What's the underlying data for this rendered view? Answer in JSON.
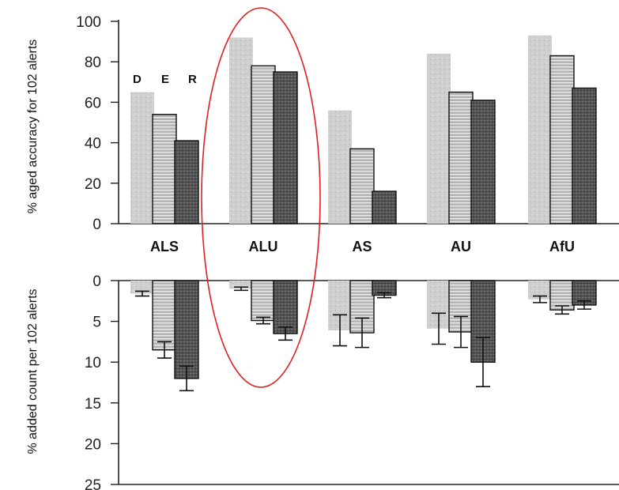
{
  "chart_data": [
    {
      "type": "bar",
      "categories": [
        "ALS",
        "ALU",
        "AS",
        "AU",
        "AfU"
      ],
      "series": [
        {
          "name": "D",
          "values": [
            65,
            92,
            56,
            84,
            93
          ]
        },
        {
          "name": "E",
          "values": [
            54,
            78,
            37,
            65,
            83
          ]
        },
        {
          "name": "R",
          "values": [
            41,
            75,
            16,
            61,
            67
          ]
        }
      ],
      "ylabel": "% aged accuracy for 102 alerts",
      "ylim": [
        0,
        100
      ],
      "yticks": [
        "100",
        "80",
        "60",
        "40",
        "20",
        "0"
      ],
      "legend": [
        "D",
        "E",
        "R"
      ],
      "legend_position": "top-left",
      "grid": false
    },
    {
      "type": "bar",
      "categories": [
        "ALS",
        "ALU",
        "AS",
        "AU",
        "AfU"
      ],
      "series": [
        {
          "name": "D",
          "values": [
            1.6,
            1.0,
            6.1,
            5.9,
            2.3
          ],
          "err": [
            0.3,
            0.2,
            1.9,
            1.9,
            0.4
          ]
        },
        {
          "name": "E",
          "values": [
            8.5,
            4.9,
            6.4,
            6.3,
            3.6
          ],
          "err": [
            1.0,
            0.4,
            1.8,
            1.9,
            0.5
          ]
        },
        {
          "name": "R",
          "values": [
            12.0,
            6.5,
            1.8,
            10.0,
            3.0
          ],
          "err": [
            1.5,
            0.8,
            0.3,
            3.0,
            0.5
          ]
        }
      ],
      "ylabel": "% added count per 102 alerts",
      "ylim": [
        0,
        25
      ],
      "yticks": [
        "0",
        "5",
        "10",
        "15",
        "20",
        "25"
      ],
      "inverted": true,
      "grid": false
    }
  ],
  "highlight": {
    "category": "ALU",
    "shape": "ellipse",
    "color": "#e02020"
  }
}
